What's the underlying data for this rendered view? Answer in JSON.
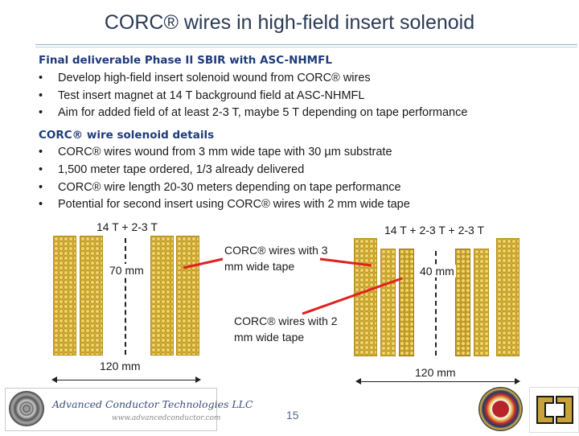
{
  "slide": {
    "title": "CORC® wires in high-field insert solenoid",
    "page_number": "15"
  },
  "section1": {
    "heading": "Final deliverable Phase II SBIR with ASC-NHMFL",
    "bullets": [
      "Develop high-field insert solenoid wound from CORC® wires",
      "Test insert magnet at 14 T background field at ASC-NHMFL",
      "Aim for added field of at least 2-3 T, maybe 5 T depending on tape performance"
    ]
  },
  "section2": {
    "heading": "CORC® wire solenoid details",
    "bullets": [
      "CORC® wires wound from 3 mm wide tape with 30 µm substrate",
      "1,500 meter tape ordered, 1/3 already delivered",
      "CORC® wire length 20-30 meters depending on tape performance",
      "Potential for second insert using CORC® wires with 2 mm wide tape"
    ]
  },
  "bullet_symbol": "•",
  "diagram": {
    "left_field": "14 T + 2-3 T",
    "left_bore": "70 mm",
    "left_width": "120 mm",
    "right_field": "14 T + 2-3 T + 2-3 T",
    "right_bore": "40 mm",
    "right_width": "120 mm",
    "callout_3mm": "CORC® wires with 3 mm wide tape",
    "callout_2mm": "CORC® wires with 2 mm wide tape"
  },
  "logos": {
    "company_name": "Advanced Conductor Technologies LLC",
    "company_url": "www.advancedconductor.com"
  },
  "colors": {
    "section_heading": "#1e3c7a",
    "title": "#2b3a55",
    "callout_line": "#e02020",
    "tape": "#d4b13a"
  }
}
